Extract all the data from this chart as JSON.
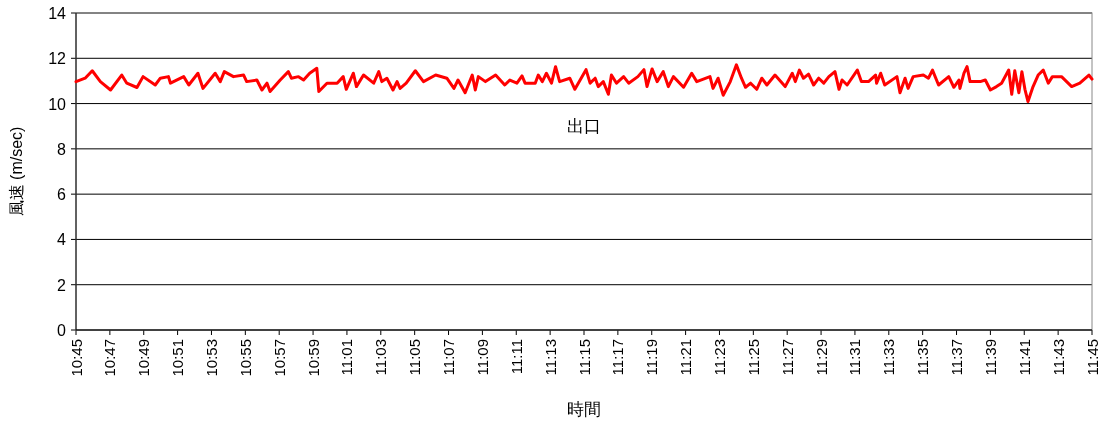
{
  "chart_data": {
    "type": "line",
    "xlabel": "時間",
    "ylabel": "風速 (m/sec)",
    "xlim": [
      10.75,
      11.75
    ],
    "ylim": [
      0,
      14
    ],
    "yticks": [
      0,
      2,
      4,
      6,
      8,
      10,
      12,
      14
    ],
    "xticks": [
      {
        "value": 10.75,
        "label": "10:45"
      },
      {
        "value": 10.78333,
        "label": "10:47"
      },
      {
        "value": 10.81667,
        "label": "10:49"
      },
      {
        "value": 10.85,
        "label": "10:51"
      },
      {
        "value": 10.88333,
        "label": "10:53"
      },
      {
        "value": 10.91667,
        "label": "10:55"
      },
      {
        "value": 10.95,
        "label": "10:57"
      },
      {
        "value": 10.98333,
        "label": "10:59"
      },
      {
        "value": 11.01667,
        "label": "11:01"
      },
      {
        "value": 11.05,
        "label": "11:03"
      },
      {
        "value": 11.08333,
        "label": "11:05"
      },
      {
        "value": 11.11667,
        "label": "11:07"
      },
      {
        "value": 11.15,
        "label": "11:09"
      },
      {
        "value": 11.18333,
        "label": "11:11"
      },
      {
        "value": 11.21667,
        "label": "11:13"
      },
      {
        "value": 11.25,
        "label": "11:15"
      },
      {
        "value": 11.28333,
        "label": "11:17"
      },
      {
        "value": 11.31667,
        "label": "11:19"
      },
      {
        "value": 11.35,
        "label": "11:21"
      },
      {
        "value": 11.38333,
        "label": "11:23"
      },
      {
        "value": 11.41667,
        "label": "11:25"
      },
      {
        "value": 11.45,
        "label": "11:27"
      },
      {
        "value": 11.48333,
        "label": "11:29"
      },
      {
        "value": 11.51667,
        "label": "11:31"
      },
      {
        "value": 11.55,
        "label": "11:33"
      },
      {
        "value": 11.58333,
        "label": "11:35"
      },
      {
        "value": 11.61667,
        "label": "11:37"
      },
      {
        "value": 11.65,
        "label": "11:39"
      },
      {
        "value": 11.68333,
        "label": "11:41"
      },
      {
        "value": 11.71667,
        "label": "11:43"
      },
      {
        "value": 11.75,
        "label": "11:45"
      }
    ],
    "grid": "y",
    "marker": "none",
    "line_style": "solid",
    "series": [
      {
        "name": "出口",
        "color": "#ff0000",
        "x": [
          10.75,
          10.759,
          10.766,
          10.774,
          10.784,
          10.795,
          10.8,
          10.81,
          10.816,
          10.828,
          10.833,
          10.841,
          10.843,
          10.856,
          10.861,
          10.87,
          10.875,
          10.887,
          10.892,
          10.896,
          10.905,
          10.915,
          10.918,
          10.928,
          10.933,
          10.938,
          10.941,
          10.951,
          10.959,
          10.962,
          10.969,
          10.974,
          10.98,
          10.987,
          10.989,
          10.997,
          11.007,
          11.013,
          11.016,
          11.023,
          11.026,
          11.033,
          11.043,
          11.048,
          11.051,
          11.056,
          11.062,
          11.066,
          11.069,
          11.075,
          11.084,
          11.092,
          11.104,
          11.115,
          11.122,
          11.126,
          11.133,
          11.14,
          11.143,
          11.146,
          11.153,
          11.163,
          11.172,
          11.177,
          11.184,
          11.189,
          11.192,
          11.202,
          11.205,
          11.209,
          11.213,
          11.218,
          11.222,
          11.226,
          11.236,
          11.241,
          11.25,
          11.252,
          11.256,
          11.261,
          11.264,
          11.269,
          11.274,
          11.277,
          11.282,
          11.289,
          11.294,
          11.303,
          11.309,
          11.312,
          11.317,
          11.322,
          11.328,
          11.333,
          11.338,
          11.348,
          11.356,
          11.361,
          11.374,
          11.377,
          11.382,
          11.387,
          11.394,
          11.4,
          11.405,
          11.409,
          11.414,
          11.42,
          11.425,
          11.43,
          11.438,
          11.448,
          11.455,
          11.458,
          11.462,
          11.466,
          11.471,
          11.476,
          11.481,
          11.486,
          11.491,
          11.497,
          11.501,
          11.504,
          11.509,
          11.519,
          11.523,
          11.53,
          11.537,
          11.538,
          11.542,
          11.546,
          11.558,
          11.561,
          11.566,
          11.569,
          11.574,
          11.584,
          11.589,
          11.593,
          11.599,
          11.609,
          11.614,
          11.619,
          11.62,
          11.624,
          11.627,
          11.63,
          11.64,
          11.645,
          11.65,
          11.656,
          11.661,
          11.668,
          11.671,
          11.674,
          11.678,
          11.681,
          11.684,
          11.687,
          11.692,
          11.697,
          11.702,
          11.707,
          11.711,
          11.72,
          11.73,
          11.738,
          11.747,
          11.75
        ],
        "values": [
          10.97,
          11.12,
          11.45,
          10.97,
          10.6,
          11.26,
          10.9,
          10.71,
          11.19,
          10.82,
          11.12,
          11.19,
          10.9,
          11.19,
          10.82,
          11.34,
          10.67,
          11.34,
          10.97,
          11.41,
          11.19,
          11.26,
          10.97,
          11.04,
          10.6,
          10.9,
          10.53,
          11.04,
          11.41,
          11.12,
          11.19,
          11.04,
          11.34,
          11.56,
          10.53,
          10.9,
          10.9,
          11.19,
          10.63,
          11.34,
          10.75,
          11.26,
          10.9,
          11.41,
          10.97,
          11.12,
          10.6,
          10.97,
          10.67,
          10.9,
          11.45,
          10.97,
          11.26,
          11.12,
          10.67,
          11.04,
          10.48,
          11.26,
          10.6,
          11.19,
          10.97,
          11.26,
          10.82,
          11.04,
          10.9,
          11.22,
          10.9,
          10.9,
          11.26,
          10.97,
          11.34,
          10.9,
          11.63,
          10.97,
          11.12,
          10.63,
          11.34,
          11.5,
          10.9,
          11.12,
          10.75,
          10.97,
          10.41,
          11.26,
          10.9,
          11.19,
          10.9,
          11.19,
          11.5,
          10.75,
          11.53,
          10.97,
          11.41,
          10.75,
          11.19,
          10.72,
          11.34,
          10.97,
          11.19,
          10.67,
          11.12,
          10.37,
          10.97,
          11.71,
          11.12,
          10.72,
          10.9,
          10.63,
          11.12,
          10.82,
          11.26,
          10.75,
          11.34,
          10.97,
          11.48,
          11.12,
          11.3,
          10.82,
          11.12,
          10.9,
          11.19,
          11.41,
          10.63,
          11.04,
          10.82,
          11.48,
          10.97,
          10.97,
          11.26,
          10.9,
          11.34,
          10.82,
          11.19,
          10.48,
          11.12,
          10.67,
          11.19,
          11.26,
          11.12,
          11.48,
          10.82,
          11.19,
          10.72,
          11.04,
          10.67,
          11.34,
          11.63,
          10.97,
          10.97,
          11.04,
          10.6,
          10.75,
          10.9,
          11.48,
          10.41,
          11.45,
          10.48,
          11.41,
          10.63,
          10.09,
          10.75,
          11.26,
          11.48,
          10.9,
          11.19,
          11.19,
          10.75,
          10.9,
          11.26,
          11.08
        ]
      }
    ]
  }
}
